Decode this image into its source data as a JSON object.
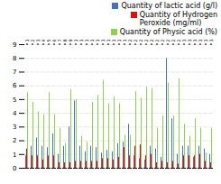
{
  "chart_data": {
    "type": "bar",
    "categories": [
      "1",
      "2",
      "3",
      "4",
      "5",
      "6",
      "7",
      "8",
      "9",
      "10",
      "11",
      "12",
      "13",
      "14",
      "15",
      "16",
      "17",
      "18",
      "19",
      "20",
      "21",
      "22",
      "23",
      "24",
      "25",
      "26",
      "27",
      "28",
      "29",
      "30",
      "31",
      "32",
      "33",
      "34",
      "35"
    ],
    "series": [
      {
        "name": "Quantity of lactic acid (g/l)",
        "color": "#4472c4",
        "values": [
          0.9,
          1.6,
          2.2,
          1.6,
          1.5,
          2.5,
          1.0,
          1.6,
          3.0,
          4.9,
          1.6,
          1.2,
          1.6,
          1.5,
          1.1,
          1.3,
          1.2,
          1.8,
          1.9,
          3.2,
          0.9,
          0.7,
          0.6,
          1.6,
          1.4,
          0.8,
          8.0,
          3.6,
          1.0,
          1.6,
          1.6,
          0.8,
          1.6,
          1.4,
          1.0
        ]
      },
      {
        "name": "Quantity of Hydrogen\nPeroxide (mg/ml)",
        "color": "#ff0000",
        "values": [
          1.4,
          0.9,
          0.9,
          0.6,
          0.9,
          0.9,
          0.4,
          0.4,
          0.4,
          0.5,
          0.5,
          0.5,
          0.5,
          0.5,
          0.7,
          0.7,
          0.6,
          0.8,
          1.5,
          0.9,
          1.6,
          1.7,
          0.9,
          1.0,
          0.4,
          0.5,
          0.4,
          0.5,
          0.3,
          0.9,
          0.9,
          0.9,
          1.0,
          0.5,
          0.4
        ]
      },
      {
        "name": "Quantity of Physic acid (%)",
        "color": "#92d050",
        "values": [
          5.5,
          4.8,
          4.1,
          3.9,
          5.5,
          3.9,
          2.9,
          1.8,
          5.7,
          5.0,
          2.3,
          1.9,
          4.8,
          5.3,
          6.4,
          4.7,
          5.2,
          4.7,
          2.4,
          2.4,
          5.6,
          5.1,
          5.9,
          5.8,
          2.9,
          3.8,
          6.2,
          3.8,
          6.5,
          3.2,
          2.3,
          3.6,
          2.9,
          1.1,
          2.9
        ]
      }
    ],
    "ylim": [
      0,
      9
    ],
    "yticks": [
      0,
      1,
      2,
      3,
      4,
      5,
      6,
      7,
      8,
      9
    ],
    "grid": true,
    "legend": "upper right"
  }
}
